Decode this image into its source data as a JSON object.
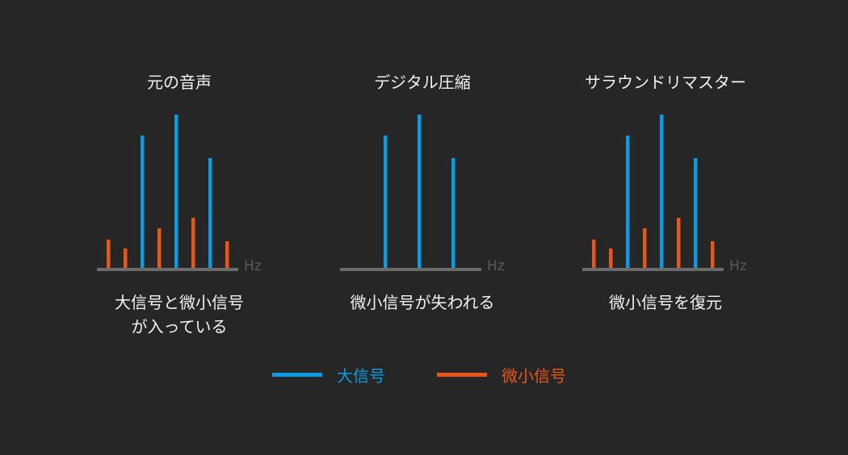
{
  "colors": {
    "large": "#0a9be0",
    "small": "#e8561a",
    "axis": "#6b6b6b",
    "unit": "#5a5a5a",
    "background": "#262626"
  },
  "unit_label": "Hz",
  "panels": [
    {
      "title": "元の音声",
      "caption_lines": [
        "大信号と微小信号",
        "が入っている"
      ],
      "bars": [
        {
          "type": "small",
          "v": 35
        },
        {
          "type": "small",
          "v": 24
        },
        {
          "type": "large",
          "v": 164
        },
        {
          "type": "small",
          "v": 49
        },
        {
          "type": "large",
          "v": 190
        },
        {
          "type": "small",
          "v": 62
        },
        {
          "type": "large",
          "v": 136
        },
        {
          "type": "small",
          "v": 33
        }
      ]
    },
    {
      "title": "デジタル圧縮",
      "caption_lines": [
        "微小信号が失われる"
      ],
      "bars": [
        {
          "type": "none",
          "v": 0
        },
        {
          "type": "none",
          "v": 0
        },
        {
          "type": "large",
          "v": 164
        },
        {
          "type": "none",
          "v": 0
        },
        {
          "type": "large",
          "v": 190
        },
        {
          "type": "none",
          "v": 0
        },
        {
          "type": "large",
          "v": 136
        },
        {
          "type": "none",
          "v": 0
        }
      ]
    },
    {
      "title": "サラウンドリマスター",
      "caption_lines": [
        "微小信号を復元"
      ],
      "bars": [
        {
          "type": "small",
          "v": 35
        },
        {
          "type": "small",
          "v": 24
        },
        {
          "type": "large",
          "v": 164
        },
        {
          "type": "small",
          "v": 49
        },
        {
          "type": "large",
          "v": 190
        },
        {
          "type": "small",
          "v": 62
        },
        {
          "type": "large",
          "v": 136
        },
        {
          "type": "small",
          "v": 33
        }
      ]
    }
  ],
  "legend": {
    "large": "大信号",
    "small": "微小信号"
  }
}
